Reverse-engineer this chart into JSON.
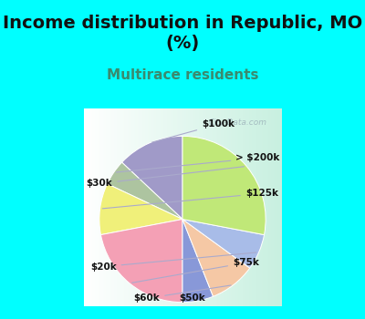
{
  "title": "Income distribution in Republic, MO\n(%)",
  "subtitle": "Multirace residents",
  "title_fontsize": 14,
  "subtitle_fontsize": 11,
  "title_color": "#111111",
  "subtitle_color": "#3a8a6e",
  "bg_cyan": "#00ffff",
  "labels": [
    "$100k",
    "> $200k",
    "$125k",
    "$75k",
    "$50k",
    "$60k",
    "$20k",
    "$30k"
  ],
  "sizes": [
    13,
    5,
    10,
    22,
    6,
    9,
    7,
    28
  ],
  "colors": [
    "#a09ac8",
    "#adc4a0",
    "#f0f07a",
    "#f4a0b5",
    "#8898d8",
    "#f5c8a5",
    "#a8bce8",
    "#c0e878"
  ],
  "startangle": 90,
  "wedge_edgecolor": "#ffffff",
  "watermark": "City-Data.com",
  "line_color": "#aaaacc"
}
